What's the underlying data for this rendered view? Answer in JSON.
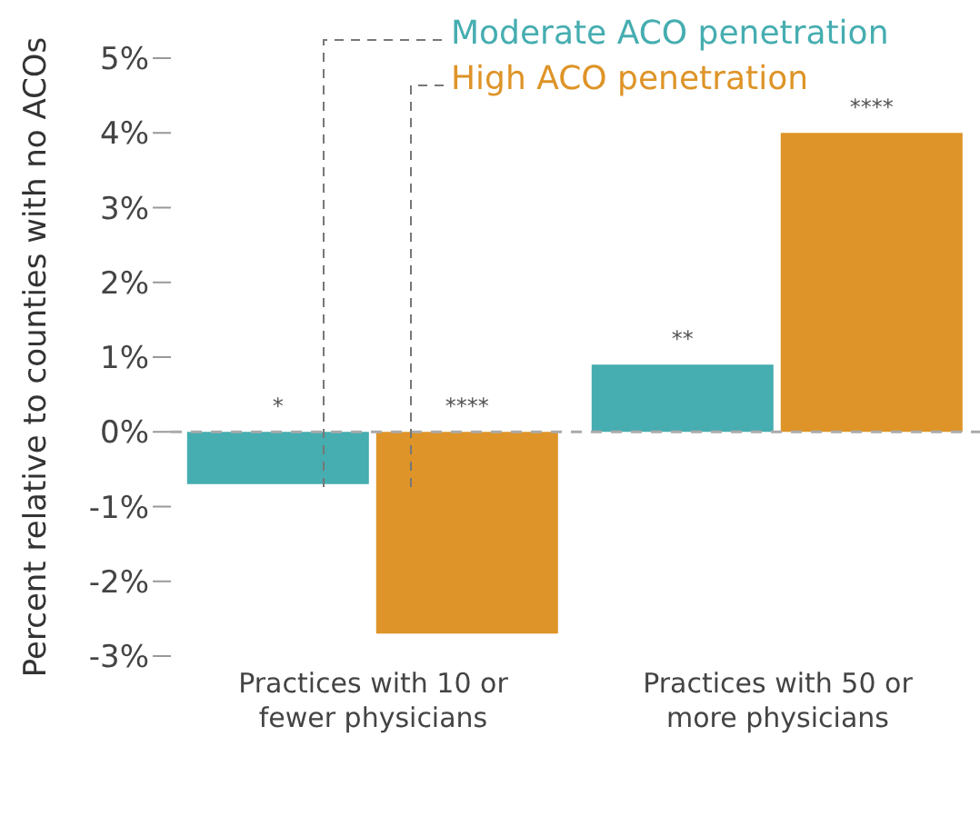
{
  "chart_data": {
    "type": "bar",
    "categories": [
      "Practices with 10 or fewer physicians",
      "Practices with 50 or more physicians"
    ],
    "series": [
      {
        "name": "Moderate ACO penetration",
        "color": "#46adb0",
        "values": [
          -0.7,
          0.9
        ],
        "value_labels": [
          "*",
          "**"
        ]
      },
      {
        "name": "High ACO penetration",
        "color": "#de9428",
        "values": [
          -2.7,
          4.0
        ],
        "value_labels": [
          "****",
          "****"
        ]
      }
    ],
    "ylabel": "Percent relative to counties with no ACOs",
    "ylim": [
      -3,
      5
    ],
    "yticks": [
      {
        "value": -3,
        "label": "-3%"
      },
      {
        "value": -2,
        "label": "-2%"
      },
      {
        "value": -1,
        "label": "-1%"
      },
      {
        "value": 0,
        "label": "0%"
      },
      {
        "value": 1,
        "label": "1%"
      },
      {
        "value": 2,
        "label": "2%"
      },
      {
        "value": 3,
        "label": "3%"
      },
      {
        "value": 4,
        "label": "4%"
      },
      {
        "value": 5,
        "label": "5%"
      }
    ],
    "ref_lines": [
      {
        "axis": "y",
        "value": 0,
        "color": "#aaaaaa",
        "line_style": "dashed"
      }
    ],
    "grid": false,
    "legend": "top"
  }
}
